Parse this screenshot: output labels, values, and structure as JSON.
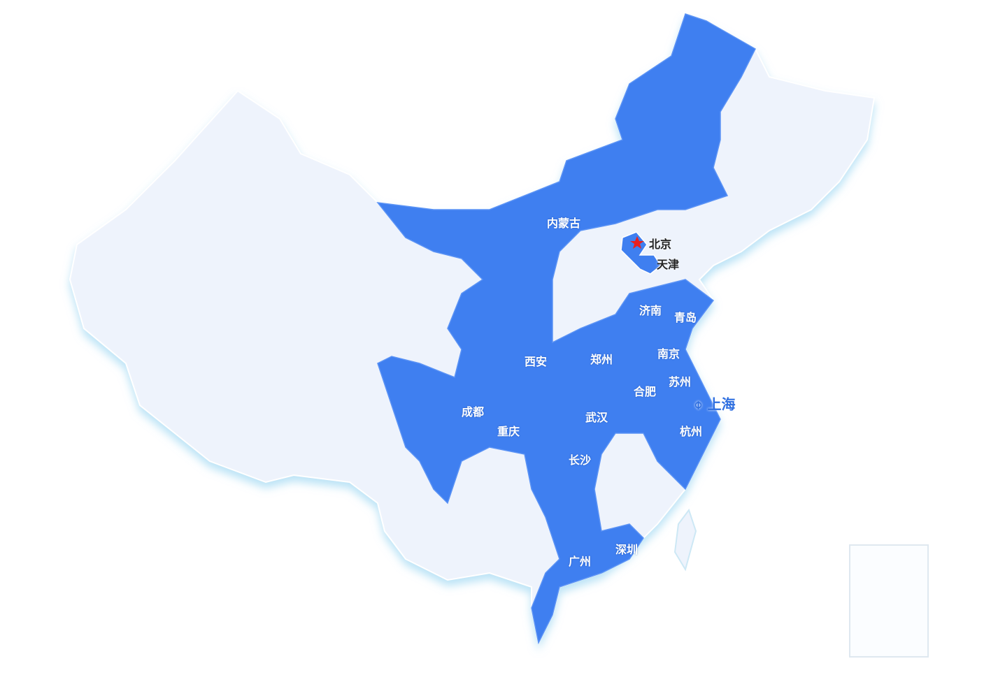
{
  "colors": {
    "highlight": "#3f7ff0",
    "base": "#eef3fc",
    "border": "#ffffff",
    "capital_star": "#e82020",
    "shanghai": "#2f6fe0"
  },
  "capital": {
    "label": "北京",
    "icon": "star-icon"
  },
  "highlight_label": "内蒙古",
  "cities": [
    {
      "name": "天津"
    },
    {
      "name": "济南"
    },
    {
      "name": "青岛"
    },
    {
      "name": "西安"
    },
    {
      "name": "郑州"
    },
    {
      "name": "南京"
    },
    {
      "name": "苏州"
    },
    {
      "name": "合肥"
    },
    {
      "name": "成都"
    },
    {
      "name": "重庆"
    },
    {
      "name": "武汉"
    },
    {
      "name": "杭州"
    },
    {
      "name": "长沙"
    },
    {
      "name": "深圳"
    },
    {
      "name": "广州"
    }
  ],
  "headquarters": {
    "name": "上海",
    "icon": "location-pin-icon"
  }
}
